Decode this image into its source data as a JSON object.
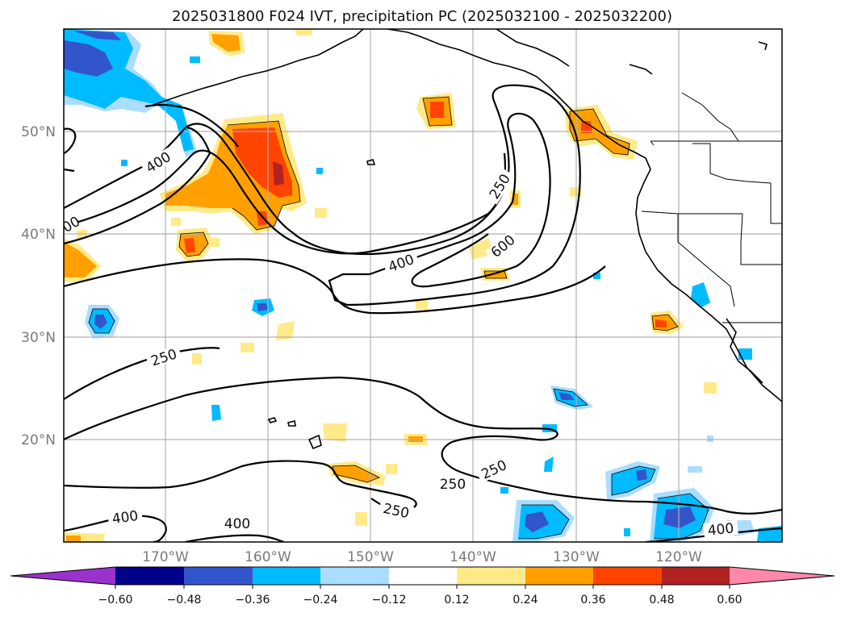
{
  "map": {
    "title": "2025031800 F024 IVT, precipitation PC (2025032100 - 2025032200)",
    "lon_labels": [
      "170°W",
      "160°W",
      "150°W",
      "140°W",
      "130°W",
      "120°W"
    ],
    "lat_labels": [
      "50°N",
      "40°N",
      "30°N",
      "20°N"
    ],
    "contour_labels": [
      "400",
      "00",
      "250",
      "400",
      "250",
      "600",
      "250",
      "250",
      "250",
      "400",
      "400",
      "400"
    ]
  },
  "colorbar": {
    "ticks": [
      "−0.60",
      "−0.48",
      "−0.36",
      "−0.24",
      "−0.12",
      "0.12",
      "0.24",
      "0.36",
      "0.48",
      "0.60"
    ],
    "colors": [
      "#9933cc",
      "#000088",
      "#3355cc",
      "#00bbff",
      "#aaddff",
      "#ffffff",
      "#ffea8a",
      "#ffa000",
      "#ff4400",
      "#b22222",
      "#ff88aa"
    ]
  }
}
